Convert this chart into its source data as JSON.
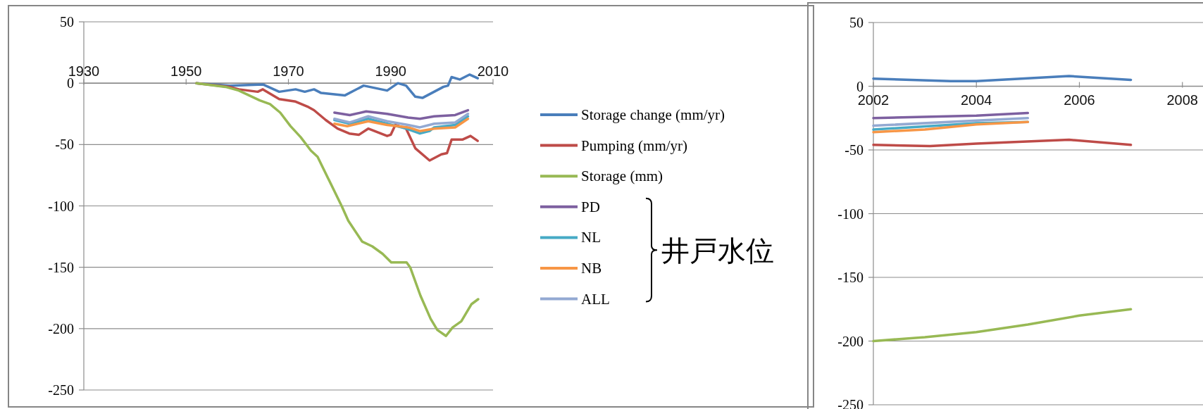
{
  "chart_data": [
    {
      "type": "line",
      "xlim": [
        1930,
        2010
      ],
      "xticks": [
        1930,
        1950,
        1970,
        1990,
        2010
      ],
      "ylim": [
        -250,
        50
      ],
      "yticks": [
        50,
        0,
        -50,
        -100,
        -150,
        -200,
        -250
      ],
      "grid": "y",
      "legend": "right",
      "line_style": "solid",
      "marker": "none",
      "annotations": [
        "井戸水位"
      ],
      "series": [
        {
          "name": "Storage change (mm/yr)",
          "color": "#4a7ebb",
          "x": [
            1952,
            1958.5,
            1965,
            1968.2,
            1971.4,
            1973.2,
            1975,
            1976.4,
            1981,
            1984.7,
            1989.3,
            1991.4,
            1993,
            1994.8,
            1996.2,
            2000.3,
            2001.2,
            2001.9,
            2003.5,
            2005.4,
            2007
          ],
          "values": [
            0,
            -2,
            -1,
            -7,
            -5,
            -7,
            -5,
            -8,
            -10,
            -2,
            -6,
            0,
            -2,
            -11,
            -12,
            -3,
            -2,
            5,
            3,
            7,
            4
          ]
        },
        {
          "name": "Pumping (mm/yr)",
          "color": "#be4b48",
          "x": [
            1952,
            1958.5,
            1960.3,
            1964,
            1965,
            1968.2,
            1971.4,
            1973.7,
            1975,
            1977.3,
            1979.6,
            1981.9,
            1983.8,
            1985.6,
            1989.3,
            1990,
            1990.9,
            1993,
            1994.8,
            1997.6,
            1999.9,
            2001,
            2001.9,
            2004,
            2005.6,
            2007
          ],
          "values": [
            0,
            -3,
            -5,
            -7,
            -5,
            -13,
            -15,
            -19,
            -22,
            -30,
            -37,
            -41,
            -42,
            -37,
            -43,
            -42,
            -34,
            -37,
            -53,
            -63,
            -58,
            -57,
            -46,
            -46,
            -43,
            -47
          ]
        },
        {
          "name": "Storage (mm)",
          "color": "#98b954",
          "x": [
            1952,
            1957.7,
            1960.3,
            1964.4,
            1966.4,
            1968.4,
            1970.4,
            1972.4,
            1974.4,
            1975.7,
            1977.7,
            1980.4,
            1981.7,
            1984.4,
            1986.4,
            1988.4,
            1990.1,
            1993.1,
            1993.8,
            1995.8,
            1997.8,
            1999.1,
            2000.8,
            2002.1,
            2003.8,
            2005.8,
            2007.1
          ],
          "values": [
            0,
            -3,
            -6,
            -14,
            -17,
            -24,
            -35,
            -44,
            -55,
            -60,
            -77,
            -100,
            -112,
            -129,
            -133,
            -139,
            -146,
            -146,
            -150,
            -173,
            -192,
            -201,
            -206,
            -199,
            -194,
            -180,
            -176
          ]
        },
        {
          "name": "PD",
          "color": "#7d60a0",
          "x": [
            1979,
            1982,
            1985.2,
            1989.3,
            1993.4,
            1995.7,
            1998.5,
            2002.6,
            2005.1
          ],
          "values": [
            -24,
            -26,
            -23,
            -25,
            -28,
            -29,
            -27,
            -26,
            -22
          ]
        },
        {
          "name": "NL",
          "color": "#46aac5",
          "x": [
            1979,
            1982,
            1985.6,
            1989.3,
            1993,
            1995.7,
            1997.6,
            1998.5,
            2002.6,
            2005.1
          ],
          "values": [
            -30,
            -33,
            -29,
            -33,
            -37,
            -41,
            -39,
            -36,
            -34,
            -27
          ]
        },
        {
          "name": "NB",
          "color": "#f79646",
          "x": [
            1979,
            1981.5,
            1985.6,
            1989.3,
            1993.4,
            1995.7,
            1998.5,
            2002.6,
            2005.1
          ],
          "values": [
            -33,
            -35,
            -31,
            -34,
            -36,
            -39,
            -37,
            -36,
            -29
          ]
        },
        {
          "name": "ALL",
          "color": "#93a9d2",
          "x": [
            1979,
            1982,
            1985.6,
            1989.3,
            1993.4,
            1995.7,
            1998.5,
            2002.6,
            2005.1
          ],
          "values": [
            -29,
            -32,
            -27,
            -31,
            -34,
            -36,
            -33,
            -32,
            -25
          ]
        }
      ]
    },
    {
      "type": "line",
      "xlim": [
        2002,
        2008.4
      ],
      "xticks": [
        2002,
        2004,
        2006,
        2008
      ],
      "ylim": [
        -250,
        50
      ],
      "yticks": [
        50,
        0,
        -50,
        -100,
        -150,
        -200,
        -250
      ],
      "grid": "y",
      "line_style": "solid",
      "marker": "none",
      "series": [
        {
          "color": "#4a7ebb",
          "x": [
            2002,
            2003.5,
            2004,
            2005.8,
            2007
          ],
          "values": [
            6,
            4,
            4,
            8,
            5
          ]
        },
        {
          "color": "#be4b48",
          "x": [
            2002,
            2003.1,
            2004,
            2005.8,
            2007
          ],
          "values": [
            -46,
            -47,
            -45,
            -42,
            -46
          ]
        },
        {
          "color": "#98b954",
          "x": [
            2002,
            2003,
            2004,
            2005,
            2006,
            2007
          ],
          "values": [
            -200,
            -197,
            -193,
            -187,
            -180,
            -175
          ]
        },
        {
          "color": "#7d60a0",
          "x": [
            2002,
            2004,
            2005
          ],
          "values": [
            -25,
            -23,
            -21
          ]
        },
        {
          "color": "#46aac5",
          "x": [
            2002,
            2004,
            2005
          ],
          "values": [
            -34,
            -29,
            -28
          ]
        },
        {
          "color": "#f79646",
          "x": [
            2002,
            2003,
            2004,
            2005
          ],
          "values": [
            -36,
            -34,
            -30,
            -28
          ]
        },
        {
          "color": "#93a9d2",
          "x": [
            2002,
            2004,
            2005
          ],
          "values": [
            -31,
            -27,
            -25
          ]
        }
      ]
    }
  ]
}
